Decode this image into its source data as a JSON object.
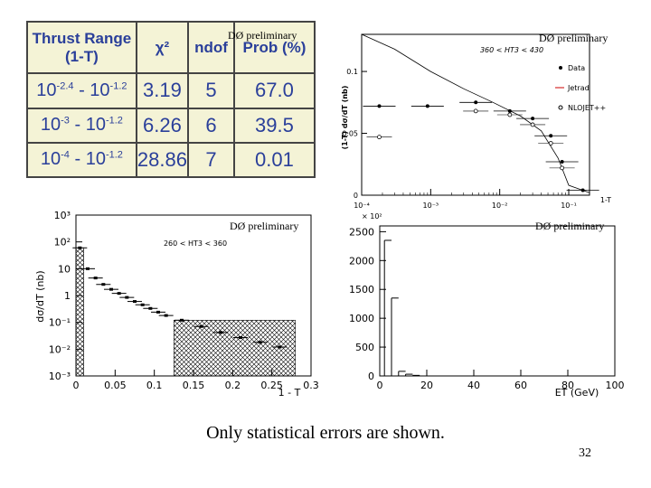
{
  "table": {
    "headers": [
      "Thrust Range (1-T)",
      "χ²",
      "ndof",
      "Prob (%)"
    ],
    "rows": [
      {
        "range_base1": "10",
        "range_exp1": "-2.4",
        "range_sep": " - ",
        "range_base2": "10",
        "range_exp2": "-1.2",
        "chi2": "3.19",
        "ndof": "5",
        "prob": "67.0"
      },
      {
        "range_base1": "10",
        "range_exp1": "-3",
        "range_sep": " - ",
        "range_base2": "10",
        "range_exp2": "-1.2",
        "chi2": "6.26",
        "ndof": "6",
        "prob": "39.5"
      },
      {
        "range_base1": "10",
        "range_exp1": "-4",
        "range_sep": " - ",
        "range_base2": "10",
        "range_exp2": "-1.2",
        "chi2": "28.86",
        "ndof": "7",
        "prob": "0.01"
      }
    ]
  },
  "labels": {
    "preliminary": "DØ preliminary",
    "caption": "Only statistical errors are shown.",
    "page_number": "32"
  },
  "chart_data": [
    {
      "type": "line",
      "ylabel": "(1-T) dσ/dT (nb)",
      "xlabel": "1-T",
      "annotation": "360 < HT3 < 430",
      "x_scale": "log",
      "xlim": [
        0.0001,
        0.2
      ],
      "ylim": [
        0,
        0.13
      ],
      "x_ticks": [
        "10⁻⁴",
        "10⁻³",
        "10⁻²",
        "10⁻¹"
      ],
      "y_ticks": [
        "0",
        "0.05",
        "0.1"
      ],
      "legend": [
        "Data",
        "Jetrad",
        "NLOJET++"
      ],
      "legend_position": "right",
      "series": [
        {
          "name": "Data",
          "points": [
            {
              "x": 0.00018,
              "y": 0.072
            },
            {
              "x": 0.0009,
              "y": 0.072
            },
            {
              "x": 0.0045,
              "y": 0.075
            },
            {
              "x": 0.014,
              "y": 0.068
            },
            {
              "x": 0.03,
              "y": 0.062
            },
            {
              "x": 0.055,
              "y": 0.048
            },
            {
              "x": 0.08,
              "y": 0.027
            },
            {
              "x": 0.16,
              "y": 0.004
            }
          ]
        },
        {
          "name": "Jetrad",
          "points": [
            {
              "x": 0.0001,
              "y": 0.13
            },
            {
              "x": 0.0003,
              "y": 0.118
            },
            {
              "x": 0.001,
              "y": 0.1
            },
            {
              "x": 0.003,
              "y": 0.086
            },
            {
              "x": 0.008,
              "y": 0.075
            },
            {
              "x": 0.02,
              "y": 0.064
            },
            {
              "x": 0.04,
              "y": 0.052
            },
            {
              "x": 0.07,
              "y": 0.03
            },
            {
              "x": 0.1,
              "y": 0.008
            },
            {
              "x": 0.2,
              "y": 0.002
            }
          ]
        },
        {
          "name": "NLOJET++",
          "points": [
            {
              "x": 0.00018,
              "y": 0.047
            },
            {
              "x": 0.0045,
              "y": 0.068
            },
            {
              "x": 0.014,
              "y": 0.065
            },
            {
              "x": 0.03,
              "y": 0.057
            },
            {
              "x": 0.055,
              "y": 0.042
            },
            {
              "x": 0.08,
              "y": 0.022
            }
          ]
        }
      ]
    },
    {
      "type": "bar",
      "ylabel": "dσ/dT (nb)",
      "xlabel": "1 - T",
      "annotation": "260 < HT3 < 360",
      "y_scale": "log",
      "xlim": [
        0,
        0.3
      ],
      "ylim": [
        0.001,
        1000
      ],
      "x_ticks": [
        "0",
        "0.05",
        "0.1",
        "0.15",
        "0.2",
        "0.25",
        "0.3"
      ],
      "y_ticks": [
        "10⁻³",
        "10⁻²",
        "10⁻¹",
        "1",
        "10",
        "10²",
        "10³"
      ],
      "shaded_ranges": [
        [
          0.0,
          0.01
        ],
        [
          0.125,
          0.28
        ]
      ],
      "points": [
        {
          "x": 0.005,
          "y": 60
        },
        {
          "x": 0.015,
          "y": 10
        },
        {
          "x": 0.025,
          "y": 4.5
        },
        {
          "x": 0.035,
          "y": 2.6
        },
        {
          "x": 0.045,
          "y": 1.7
        },
        {
          "x": 0.055,
          "y": 1.2
        },
        {
          "x": 0.065,
          "y": 0.85
        },
        {
          "x": 0.075,
          "y": 0.6
        },
        {
          "x": 0.085,
          "y": 0.45
        },
        {
          "x": 0.095,
          "y": 0.33
        },
        {
          "x": 0.105,
          "y": 0.24
        },
        {
          "x": 0.115,
          "y": 0.18
        },
        {
          "x": 0.135,
          "y": 0.12
        },
        {
          "x": 0.16,
          "y": 0.07
        },
        {
          "x": 0.185,
          "y": 0.042
        },
        {
          "x": 0.21,
          "y": 0.027
        },
        {
          "x": 0.235,
          "y": 0.018
        },
        {
          "x": 0.26,
          "y": 0.012
        }
      ]
    },
    {
      "type": "bar",
      "xlabel": "ET (GeV)",
      "y_multiplier": "× 10²",
      "xlim": [
        0,
        100
      ],
      "ylim": [
        0,
        2600
      ],
      "x_ticks": [
        "0",
        "20",
        "40",
        "60",
        "80",
        "100"
      ],
      "y_ticks": [
        "0",
        "500",
        "1000",
        "1500",
        "2000",
        "2500"
      ],
      "bins": [
        {
          "x": 2,
          "y": 2350
        },
        {
          "x": 5,
          "y": 1350
        },
        {
          "x": 8,
          "y": 80
        },
        {
          "x": 11,
          "y": 30
        },
        {
          "x": 14,
          "y": 10
        }
      ]
    }
  ]
}
